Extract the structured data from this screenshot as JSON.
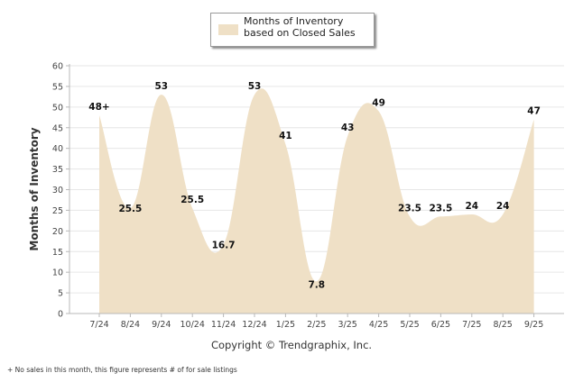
{
  "chart_data": {
    "type": "area",
    "legend": "Months of Inventory based on Closed Sales",
    "ylabel": "Months of Inventory",
    "xlabel": "",
    "ylim": [
      0,
      60
    ],
    "yticks": [
      0,
      5,
      10,
      15,
      20,
      25,
      30,
      35,
      40,
      45,
      50,
      55,
      60
    ],
    "categories": [
      "7/24",
      "8/24",
      "9/24",
      "10/24",
      "11/24",
      "12/24",
      "1/25",
      "2/25",
      "3/25",
      "4/25",
      "5/25",
      "6/25",
      "7/25",
      "8/25",
      "9/25"
    ],
    "values": [
      48,
      25.5,
      53,
      25.5,
      16.7,
      53,
      41,
      7.8,
      43,
      49,
      23.5,
      23.5,
      24,
      24,
      47
    ],
    "labels": [
      "48+",
      "25.5",
      "53",
      "25.5",
      "16.7",
      "53",
      "41",
      "7.8",
      "43",
      "49",
      "23.5",
      "23.5",
      "24",
      "24",
      "47"
    ],
    "fill_color": "#efe0c6",
    "grid": true
  },
  "copyright": "Copyright © Trendgraphix, Inc.",
  "footnote": "+  No sales in this month, this figure represents # of for sale listings"
}
